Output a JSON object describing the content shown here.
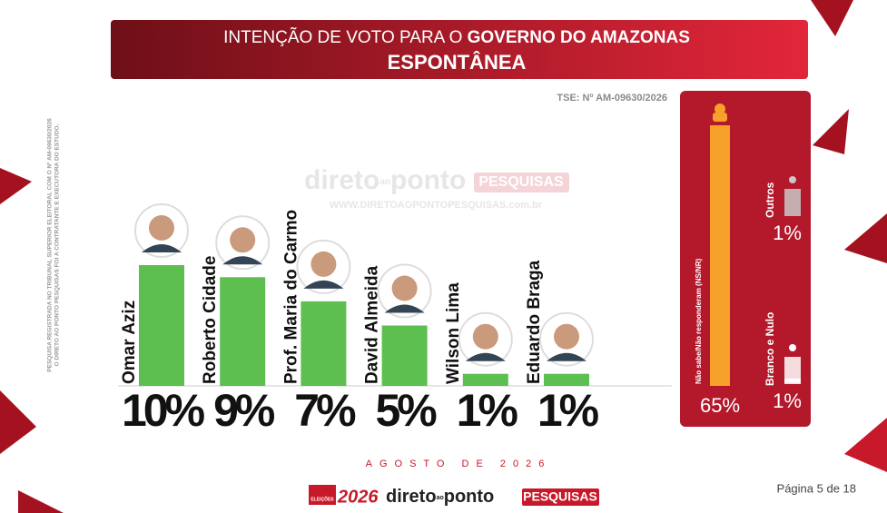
{
  "header": {
    "title_part1": "INTENÇÃO DE VOTO PARA O ",
    "title_part2": "GOVERNO DO AMAZONAS",
    "subtitle": "ESPONTÂNEA",
    "registration": "TSE: Nº AM-09630/2026"
  },
  "side_note": [
    "PESQUISA REGISTRADA NO TRIBUNAL SUPERIOR ELEITORAL COM O Nº AM-09630/2026",
    "O DIRETO AO PONTO PESQUISAS FOI A CONTRATANTE E EXECUTORA DO ESTUDO."
  ],
  "watermark": {
    "brand1": "direto",
    "brand2": "ao",
    "brand3": "ponto",
    "brand4": "PESQUISAS",
    "url": "WWW.DIRETOAOPONTOPESQUISAS.com.br"
  },
  "chart_data": [
    {
      "type": "bar",
      "categories": [
        "Omar Aziz",
        "Roberto Cidade",
        "Prof. Maria do Carmo",
        "David Almeida",
        "Wilson Lima",
        "Eduardo Braga"
      ],
      "values": [
        10,
        9,
        7,
        5,
        1,
        1
      ],
      "value_labels": [
        "10%",
        "9%",
        "7%",
        "5%",
        "1%",
        "1%"
      ],
      "color": "#5cbf4f",
      "ylim": [
        0,
        10
      ]
    },
    {
      "type": "bar",
      "categories": [
        "Não sabe/Não responderam (NS/NR)",
        "Outros",
        "Branco e Nulo"
      ],
      "values": [
        65,
        1,
        1
      ],
      "value_labels": [
        "65%",
        "1%",
        "1%"
      ],
      "colors": [
        "#f7a12a",
        "#c8c8c8",
        "#ffffff"
      ],
      "ylim": [
        0,
        65
      ]
    }
  ],
  "footer": {
    "date": "AGOSTO DE 2026",
    "logo_tag": "ELEIÇÕES",
    "logo_year": "2026",
    "logo1": "direto",
    "logo2": "ao",
    "logo3": "ponto",
    "logo4": "PESQUISAS",
    "page": "Página 5 de 18"
  }
}
